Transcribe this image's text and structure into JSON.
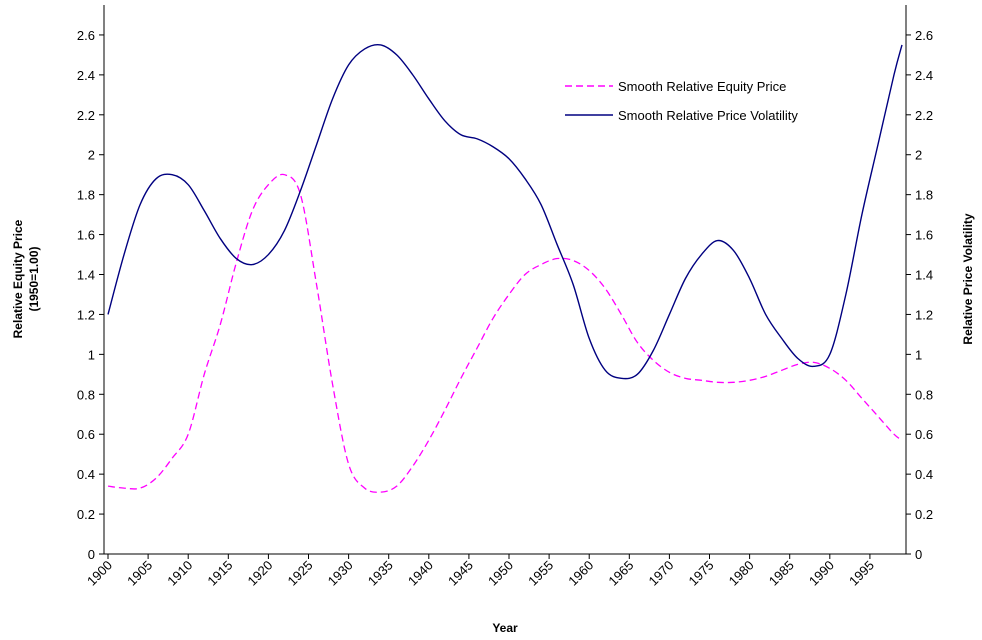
{
  "chart_data": {
    "type": "line",
    "xlabel": "Year",
    "ylabel": [
      "Relative Equity Price",
      "(1950=1.00)"
    ],
    "y2label": "Relative Price Volatility",
    "xlim": [
      1899.5,
      1999.5
    ],
    "xticks": [
      1900,
      1905,
      1910,
      1915,
      1920,
      1925,
      1930,
      1935,
      1940,
      1945,
      1950,
      1955,
      1960,
      1965,
      1970,
      1975,
      1980,
      1985,
      1990,
      1995
    ],
    "ylim": [
      0,
      2.75
    ],
    "yticks": [
      0,
      0.2,
      0.4,
      0.6,
      0.8,
      1,
      1.2,
      1.4,
      1.6,
      1.8,
      2,
      2.2,
      2.4,
      2.6
    ],
    "y2lim": [
      0,
      2.75
    ],
    "y2ticks": [
      0,
      0.2,
      0.4,
      0.6,
      0.8,
      1,
      1.2,
      1.4,
      1.6,
      1.8,
      2,
      2.2,
      2.4,
      2.6
    ],
    "legend": "upper right",
    "x": [
      1900,
      1902,
      1904,
      1906,
      1908,
      1910,
      1912,
      1914,
      1916,
      1918,
      1920,
      1922,
      1924,
      1926,
      1928,
      1930,
      1932,
      1934,
      1936,
      1938,
      1940,
      1942,
      1944,
      1946,
      1948,
      1950,
      1952,
      1954,
      1956,
      1958,
      1960,
      1962,
      1964,
      1966,
      1968,
      1970,
      1972,
      1974,
      1976,
      1978,
      1980,
      1982,
      1984,
      1986,
      1988,
      1990,
      1992,
      1994,
      1996,
      1998,
      1999
    ],
    "series": [
      {
        "name": "Smooth Relative Equity Price",
        "color": "#ff00ff",
        "dash": true,
        "values": [
          0.34,
          0.33,
          0.33,
          0.38,
          0.48,
          0.6,
          0.9,
          1.15,
          1.46,
          1.72,
          1.85,
          1.9,
          1.8,
          1.35,
          0.85,
          0.45,
          0.33,
          0.31,
          0.34,
          0.44,
          0.57,
          0.72,
          0.88,
          1.03,
          1.18,
          1.3,
          1.4,
          1.45,
          1.48,
          1.47,
          1.42,
          1.33,
          1.2,
          1.06,
          0.97,
          0.91,
          0.88,
          0.87,
          0.86,
          0.86,
          0.87,
          0.89,
          0.92,
          0.95,
          0.96,
          0.93,
          0.87,
          0.78,
          0.69,
          0.6,
          0.57
        ]
      },
      {
        "name": "Smooth Relative Price Volatility",
        "color": "#000080",
        "dash": false,
        "axis": "y2",
        "values": [
          1.2,
          1.5,
          1.75,
          1.88,
          1.9,
          1.85,
          1.72,
          1.58,
          1.48,
          1.45,
          1.5,
          1.62,
          1.82,
          2.05,
          2.28,
          2.45,
          2.53,
          2.55,
          2.5,
          2.4,
          2.28,
          2.17,
          2.1,
          2.08,
          2.04,
          1.98,
          1.88,
          1.75,
          1.55,
          1.35,
          1.08,
          0.92,
          0.88,
          0.9,
          1.02,
          1.2,
          1.38,
          1.5,
          1.57,
          1.52,
          1.38,
          1.2,
          1.08,
          0.98,
          0.94,
          1.0,
          1.3,
          1.7,
          2.05,
          2.4,
          2.55
        ]
      }
    ]
  }
}
